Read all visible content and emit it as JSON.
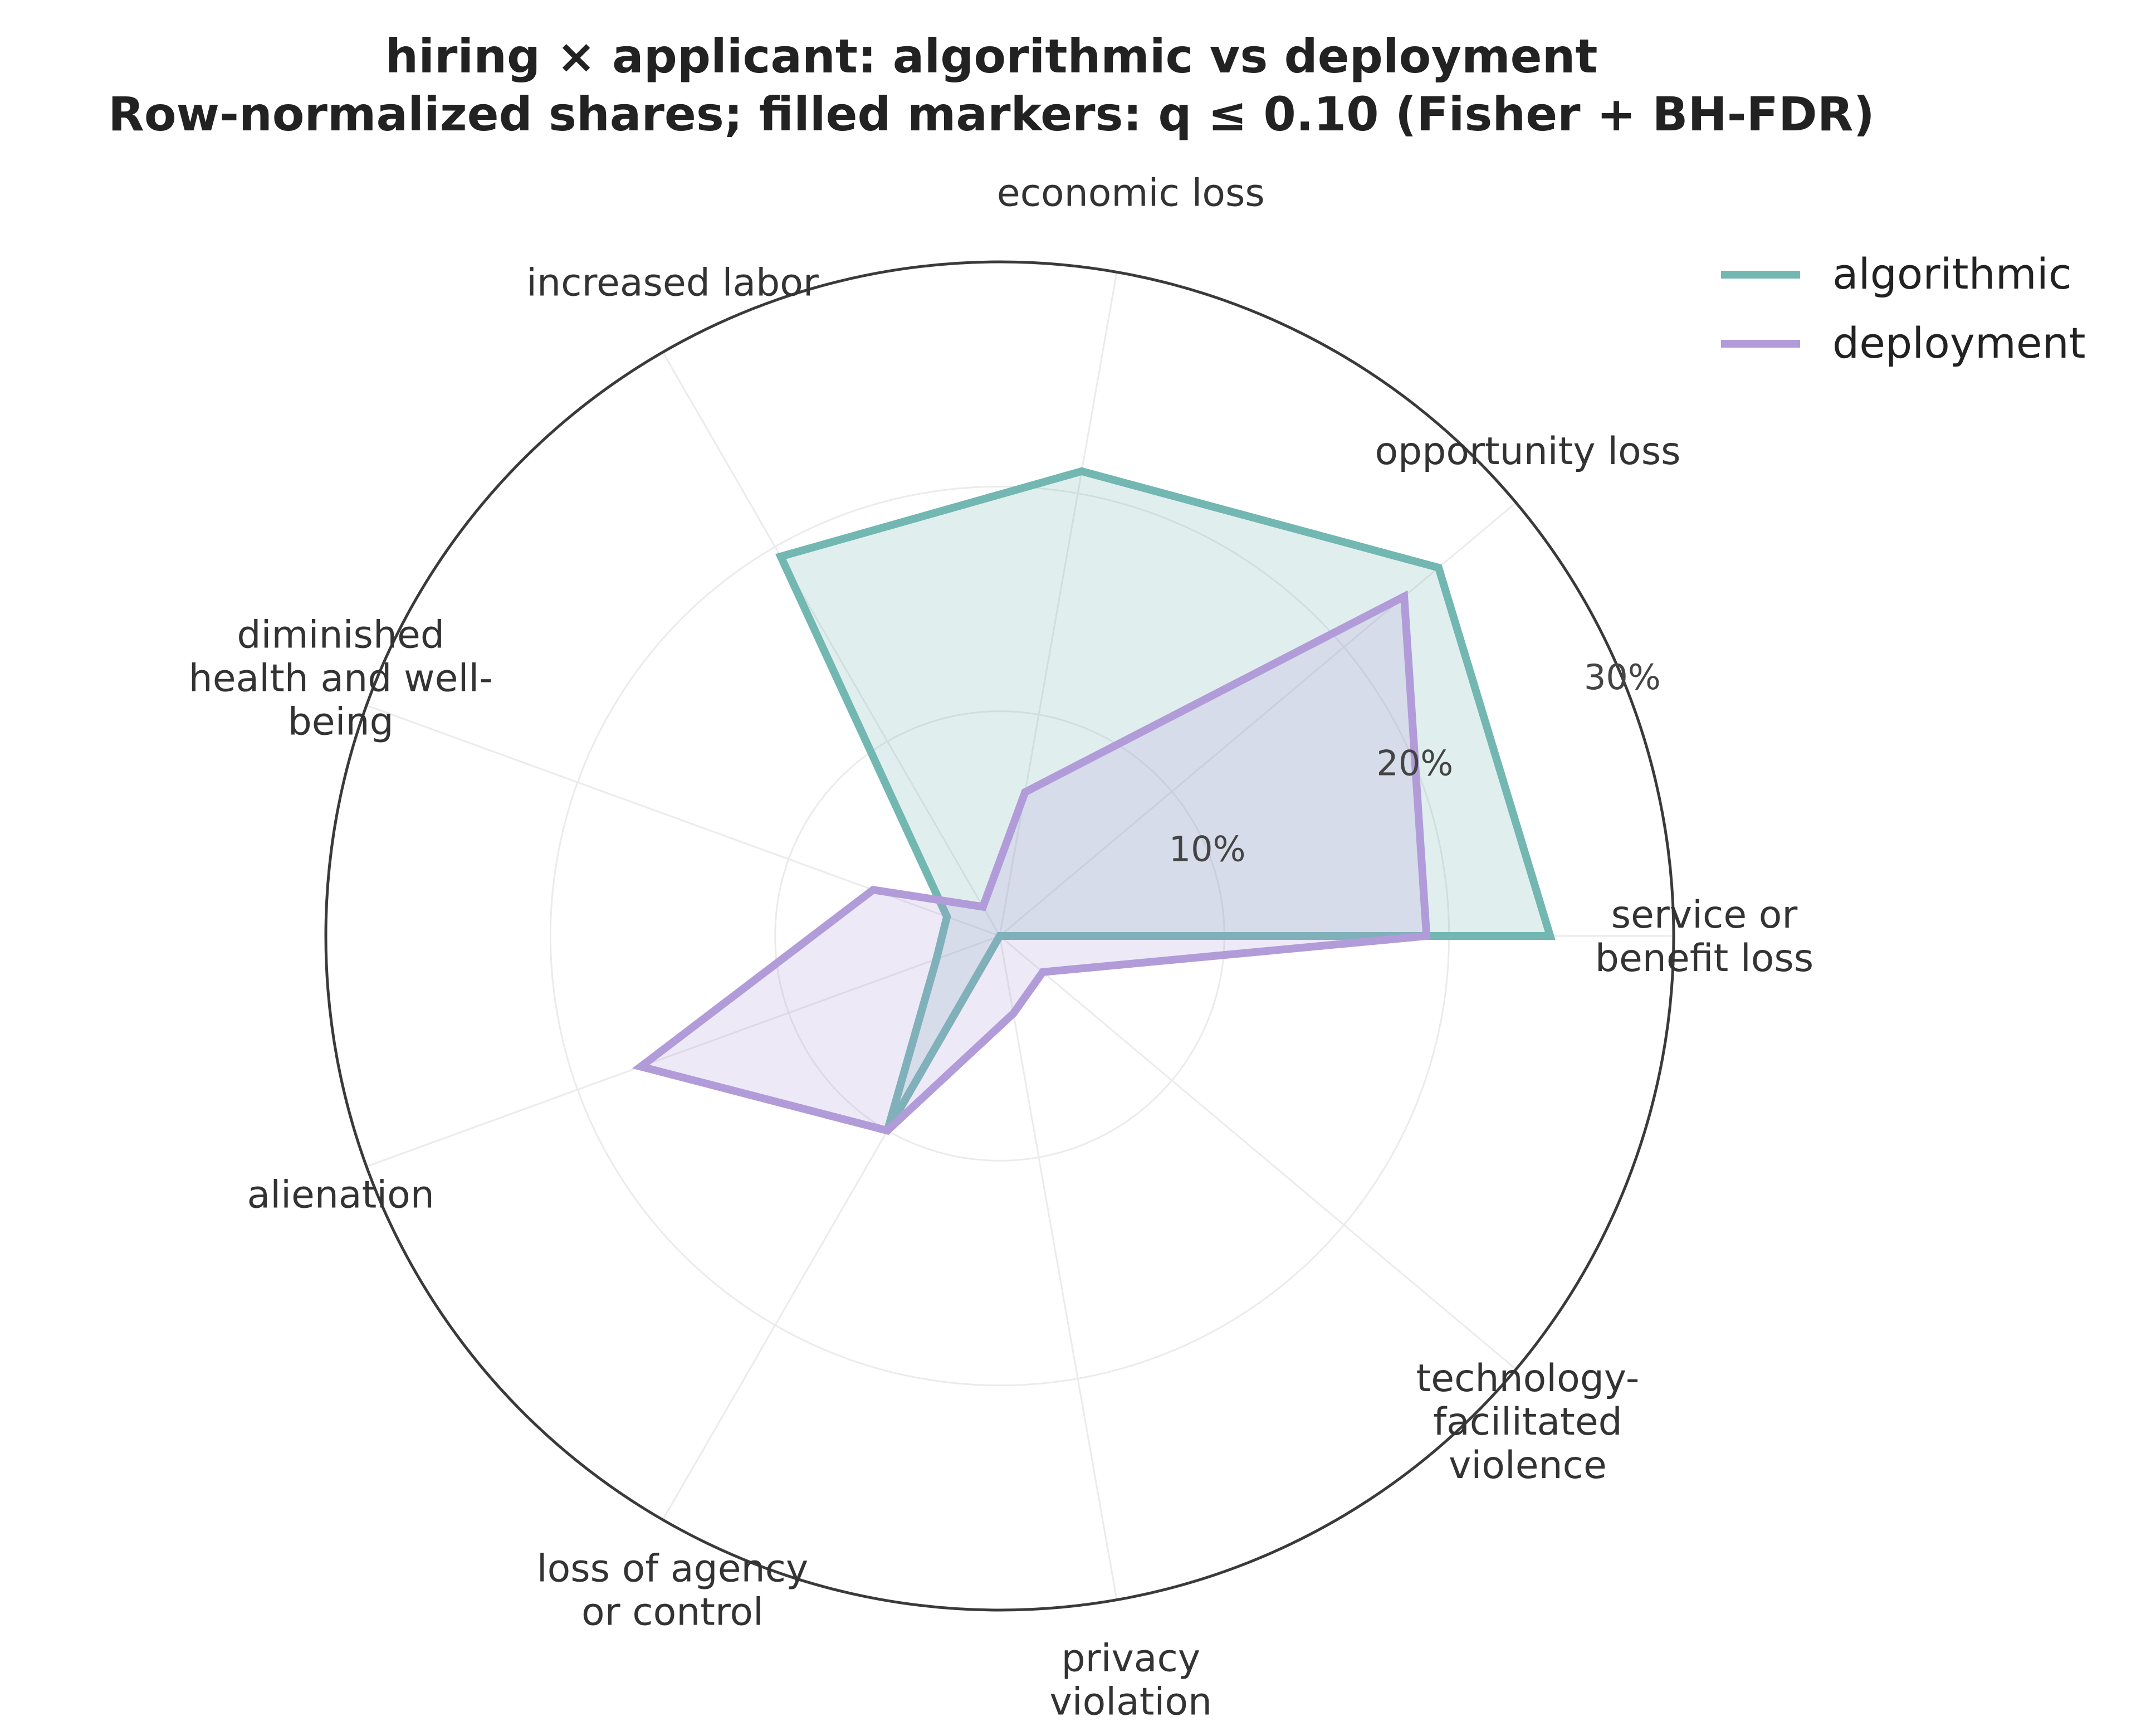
{
  "chart_data": {
    "type": "radar",
    "title": [
      "hiring × applicant: algorithmic vs deployment",
      "Row-normalized shares; filled markers: q ≤ 0.10 (Fisher + BH-FDR)"
    ],
    "categories": [
      [
        "service or",
        "benefit loss"
      ],
      [
        "opportunity loss"
      ],
      [
        "economic loss"
      ],
      [
        "increased labor"
      ],
      [
        "diminished",
        "health and well-",
        "being"
      ],
      [
        "alienation"
      ],
      [
        "loss of agency",
        "or control"
      ],
      [
        "privacy",
        "violation"
      ],
      [
        "technology-",
        "facilitated",
        "violence"
      ]
    ],
    "series": [
      {
        "name": "algorithmic",
        "color": "#72b7b1",
        "values": [
          24.5,
          25.5,
          21.0,
          19.5,
          2.5,
          3.0,
          10.0,
          0.0,
          0.0
        ]
      },
      {
        "name": "deployment",
        "color": "#b19cd9",
        "values": [
          19.0,
          23.5,
          6.5,
          1.5,
          6.0,
          17.0,
          10.0,
          3.5,
          2.5
        ]
      }
    ],
    "rlim": [
      0,
      30
    ],
    "rticks": [
      10,
      20,
      30
    ],
    "rtick_labels": [
      "10%",
      "20%",
      "30%"
    ],
    "legend_position": "top-right"
  }
}
